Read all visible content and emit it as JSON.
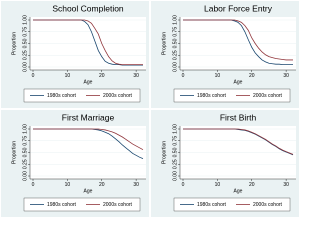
{
  "chart_data": [
    {
      "type": "line",
      "title": "School Completion",
      "xlabel": "Age",
      "ylabel": "Proportion",
      "x": [
        0,
        14,
        15,
        16,
        17,
        18,
        19,
        20,
        21,
        22,
        23,
        24,
        25,
        26,
        27,
        28,
        29,
        30,
        31,
        32
      ],
      "series": [
        {
          "name": "1980s cohort",
          "color": "#1a476f",
          "values": [
            1,
            1,
            0.97,
            0.9,
            0.75,
            0.55,
            0.35,
            0.22,
            0.12,
            0.08,
            0.06,
            0.05,
            0.05,
            0.04,
            0.04,
            0.04,
            0.04,
            0.04,
            0.04,
            0.04
          ]
        },
        {
          "name": "2000s cohort",
          "color": "#90353b",
          "values": [
            1,
            1,
            1,
            0.98,
            0.93,
            0.82,
            0.7,
            0.5,
            0.35,
            0.22,
            0.13,
            0.08,
            0.06,
            0.05,
            0.05,
            0.05,
            0.05,
            0.05,
            0.05,
            0.05
          ]
        }
      ],
      "xlim": [
        0,
        32
      ],
      "xticks": [
        0,
        10,
        20,
        30
      ],
      "ylim": [
        0,
        1
      ],
      "yticks": [
        {
          "value": 0,
          "label": "0.00"
        },
        {
          "value": 0.25,
          "label": "0.25"
        },
        {
          "value": 0.5,
          "label": "0.50"
        },
        {
          "value": 0.75,
          "label": "0.75"
        },
        {
          "value": 1,
          "label": "1.00"
        }
      ],
      "grid": true
    },
    {
      "type": "line",
      "title": "Labor Force Entry",
      "xlabel": "Age",
      "ylabel": "Proportion",
      "x": [
        0,
        14,
        15,
        16,
        17,
        18,
        19,
        20,
        21,
        22,
        23,
        24,
        25,
        26,
        27,
        28,
        29,
        30,
        31,
        32
      ],
      "series": [
        {
          "name": "1980s cohort",
          "color": "#1a476f",
          "values": [
            1,
            1,
            0.98,
            0.95,
            0.88,
            0.75,
            0.58,
            0.42,
            0.3,
            0.22,
            0.15,
            0.11,
            0.08,
            0.07,
            0.06,
            0.06,
            0.05,
            0.05,
            0.05,
            0.05
          ]
        },
        {
          "name": "2000s cohort",
          "color": "#90353b",
          "values": [
            1,
            1,
            1,
            0.98,
            0.95,
            0.88,
            0.78,
            0.62,
            0.5,
            0.4,
            0.32,
            0.26,
            0.22,
            0.2,
            0.18,
            0.17,
            0.16,
            0.15,
            0.15,
            0.15
          ]
        }
      ],
      "xlim": [
        0,
        32
      ],
      "xticks": [
        0,
        10,
        20,
        30
      ],
      "ylim": [
        0,
        1
      ],
      "yticks": [
        {
          "value": 0,
          "label": "0.00"
        },
        {
          "value": 0.25,
          "label": "0.25"
        },
        {
          "value": 0.5,
          "label": "0.50"
        },
        {
          "value": 0.75,
          "label": "0.75"
        },
        {
          "value": 1,
          "label": "1.00"
        }
      ],
      "grid": true
    },
    {
      "type": "line",
      "title": "First Marriage",
      "xlabel": "Age",
      "ylabel": "Proportion",
      "x": [
        0,
        14,
        15,
        16,
        17,
        18,
        19,
        20,
        21,
        22,
        23,
        24,
        25,
        26,
        27,
        28,
        29,
        30,
        31,
        32
      ],
      "series": [
        {
          "name": "1980s cohort",
          "color": "#1a476f",
          "values": [
            1,
            1,
            1,
            1,
            1,
            0.99,
            0.98,
            0.96,
            0.93,
            0.9,
            0.85,
            0.79,
            0.73,
            0.66,
            0.6,
            0.54,
            0.48,
            0.44,
            0.4,
            0.37
          ]
        },
        {
          "name": "2000s cohort",
          "color": "#90353b",
          "values": [
            1,
            1,
            1,
            1,
            1,
            1,
            1,
            0.99,
            0.98,
            0.96,
            0.94,
            0.91,
            0.87,
            0.83,
            0.78,
            0.73,
            0.68,
            0.64,
            0.6,
            0.56
          ]
        }
      ],
      "xlim": [
        0,
        32
      ],
      "xticks": [
        0,
        10,
        20,
        30
      ],
      "ylim": [
        0,
        1
      ],
      "yticks": [
        {
          "value": 0,
          "label": "0.00"
        },
        {
          "value": 0.25,
          "label": "0.25"
        },
        {
          "value": 0.5,
          "label": "0.50"
        },
        {
          "value": 0.75,
          "label": "0.75"
        },
        {
          "value": 1,
          "label": "1.00"
        }
      ],
      "grid": true
    },
    {
      "type": "line",
      "title": "First Birth",
      "xlabel": "Age",
      "ylabel": "Proportion",
      "x": [
        0,
        14,
        15,
        16,
        17,
        18,
        19,
        20,
        21,
        22,
        23,
        24,
        25,
        26,
        27,
        28,
        29,
        30,
        31,
        32
      ],
      "series": [
        {
          "name": "1980s cohort",
          "color": "#1a476f",
          "values": [
            1,
            1,
            1,
            0.99,
            0.98,
            0.97,
            0.95,
            0.92,
            0.89,
            0.85,
            0.81,
            0.77,
            0.72,
            0.67,
            0.63,
            0.58,
            0.54,
            0.51,
            0.48,
            0.45
          ]
        },
        {
          "name": "2000s cohort",
          "color": "#90353b",
          "values": [
            1,
            1,
            1,
            1,
            0.99,
            0.98,
            0.96,
            0.93,
            0.9,
            0.86,
            0.82,
            0.78,
            0.73,
            0.68,
            0.64,
            0.59,
            0.55,
            0.52,
            0.49,
            0.46
          ]
        }
      ],
      "xlim": [
        0,
        32
      ],
      "xticks": [
        0,
        10,
        20,
        30
      ],
      "ylim": [
        0,
        1
      ],
      "yticks": [
        {
          "value": 0,
          "label": "0.00"
        },
        {
          "value": 0.25,
          "label": "0.25"
        },
        {
          "value": 0.5,
          "label": "0.50"
        },
        {
          "value": 0.75,
          "label": "0.75"
        },
        {
          "value": 1,
          "label": "1.00"
        }
      ],
      "grid": true
    }
  ]
}
